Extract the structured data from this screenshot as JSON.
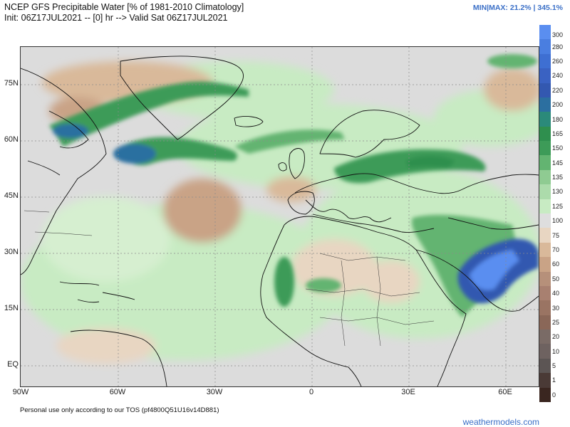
{
  "header": {
    "title_line1": "NCEP GFS Precipitable Water [% of 1981-2010 Climatology]",
    "title_line2": "Init: 06Z17JUL2021 -- [0] hr --> Valid Sat 06Z17JUL2021",
    "minmax": "MIN|MAX: 21.2% | 345.1%"
  },
  "map": {
    "lat_labels": [
      "75N",
      "60N",
      "45N",
      "30N",
      "15N",
      "EQ"
    ],
    "lon_labels": [
      "90W",
      "60W",
      "30W",
      "0",
      "30E",
      "60E"
    ]
  },
  "colorbar": {
    "labels": [
      "300",
      "280",
      "260",
      "240",
      "220",
      "200",
      "180",
      "165",
      "150",
      "145",
      "135",
      "130",
      "125",
      "100",
      "75",
      "70",
      "60",
      "50",
      "40",
      "30",
      "25",
      "20",
      "10",
      "5",
      "1",
      "0"
    ],
    "colors": [
      "#5a8ef0",
      "#4a7ee0",
      "#3e6fd2",
      "#3a62c2",
      "#3358b0",
      "#2c6fa0",
      "#2b8a7a",
      "#2f8f4e",
      "#3d9b58",
      "#63b471",
      "#8fcb92",
      "#acdbab",
      "#c8ebc3",
      "#dedede",
      "#e8d6c2",
      "#d9b99a",
      "#c9a386",
      "#b6907a",
      "#a88070",
      "#9a7463",
      "#8a6758",
      "#7a6b66",
      "#6e6260",
      "#5c5554",
      "#4a3a36",
      "#3a2620"
    ]
  },
  "footer": {
    "note": "Personal use only according to our TOS (pf4800Q51U16v14D881)",
    "brand": "weathermodels.com"
  }
}
